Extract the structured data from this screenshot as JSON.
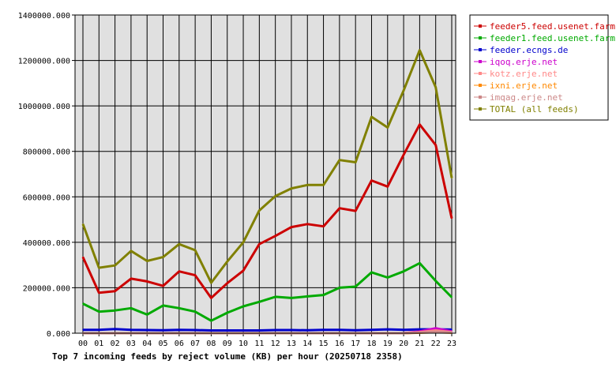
{
  "chart_data": {
    "type": "line",
    "title": "Top 7 incoming feeds by reject volume (KB) per hour (20250718 2358)",
    "xlabel": "",
    "ylabel": "",
    "categories": [
      "00",
      "01",
      "02",
      "03",
      "04",
      "05",
      "06",
      "07",
      "08",
      "09",
      "10",
      "11",
      "12",
      "13",
      "14",
      "15",
      "16",
      "17",
      "18",
      "19",
      "20",
      "21",
      "22",
      "23"
    ],
    "yticks": [
      "0.000",
      "200000.000",
      "400000.000",
      "600000.000",
      "800000.000",
      "1000000.000",
      "1200000.000",
      "1400000.000"
    ],
    "ylim": [
      0,
      1400000
    ],
    "grid": true,
    "legend_position": "right",
    "series": [
      {
        "name": "feeder5.feed.usenet.farm",
        "color": "#cc0000",
        "values": [
          335000,
          178000,
          185000,
          240000,
          228000,
          208000,
          272000,
          255000,
          155000,
          220000,
          275000,
          392000,
          428000,
          467000,
          480000,
          470000,
          550000,
          538000,
          672000,
          645000,
          785000,
          918000,
          828000,
          505000
        ]
      },
      {
        "name": "feeder1.feed.usenet.farm",
        "color": "#00aa00",
        "values": [
          130000,
          95000,
          100000,
          110000,
          82000,
          122000,
          110000,
          95000,
          55000,
          90000,
          118000,
          138000,
          160000,
          155000,
          162000,
          168000,
          200000,
          205000,
          268000,
          245000,
          272000,
          308000,
          230000,
          158000
        ]
      },
      {
        "name": "feeder.ecngs.de",
        "color": "#0000cc",
        "values": [
          15000,
          15000,
          18000,
          15000,
          14000,
          13000,
          15000,
          14000,
          12000,
          12000,
          12000,
          12000,
          14000,
          14000,
          13000,
          15000,
          15000,
          13000,
          15000,
          17000,
          15000,
          17000,
          17000,
          16000
        ]
      },
      {
        "name": "iqoq.erje.net",
        "color": "#cc00cc",
        "values": [
          0,
          0,
          0,
          0,
          0,
          0,
          0,
          0,
          0,
          0,
          0,
          0,
          0,
          0,
          0,
          0,
          0,
          0,
          0,
          0,
          0,
          8000,
          22000,
          8000
        ]
      },
      {
        "name": "kotz.erje.net",
        "color": "#ff8888",
        "values": [
          0,
          0,
          0,
          0,
          0,
          0,
          0,
          0,
          0,
          0,
          0,
          0,
          0,
          0,
          0,
          0,
          0,
          0,
          0,
          0,
          0,
          5000,
          12000,
          5000
        ]
      },
      {
        "name": "ixni.erje.net",
        "color": "#ff8800",
        "values": [
          0,
          0,
          0,
          0,
          0,
          0,
          0,
          0,
          0,
          0,
          0,
          0,
          0,
          0,
          0,
          0,
          0,
          0,
          0,
          0,
          0,
          2000,
          4000,
          2000
        ]
      },
      {
        "name": "imqag.erje.net",
        "color": "#cc8888",
        "values": [
          0,
          0,
          0,
          0,
          0,
          0,
          0,
          0,
          0,
          0,
          0,
          0,
          0,
          0,
          0,
          0,
          0,
          0,
          0,
          0,
          0,
          3000,
          6000,
          3000
        ]
      },
      {
        "name": "TOTAL (all feeds)",
        "color": "#808000",
        "values": [
          480000,
          288000,
          298000,
          362000,
          318000,
          335000,
          392000,
          365000,
          222000,
          315000,
          400000,
          540000,
          603000,
          637000,
          652000,
          652000,
          762000,
          752000,
          952000,
          905000,
          1068000,
          1245000,
          1082000,
          683000
        ]
      }
    ]
  }
}
